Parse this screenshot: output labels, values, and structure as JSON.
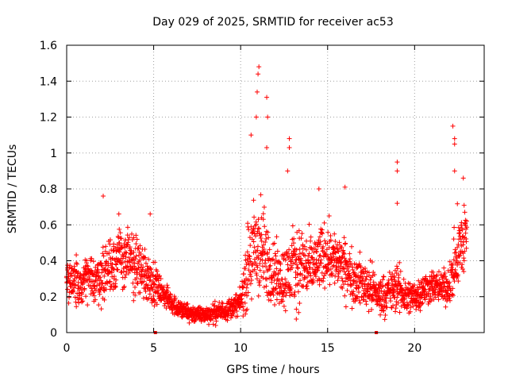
{
  "chart_data": {
    "type": "scatter",
    "title": "Day 029 of 2025, SRMTID for receiver ac53",
    "xlabel": "GPS time / hours",
    "ylabel": "SRMTID / TECUs",
    "xlim": [
      0,
      24
    ],
    "ylim": [
      0,
      1.6
    ],
    "x_ticks": [
      0,
      5,
      10,
      15,
      20
    ],
    "x_tick_labels": [
      "0",
      "5",
      "10",
      "15",
      "20"
    ],
    "y_ticks": [
      0,
      0.2,
      0.4,
      0.6,
      0.8,
      1.0,
      1.2,
      1.4,
      1.6
    ],
    "y_tick_labels": [
      "0",
      "0.2",
      "0.4",
      "0.6",
      "0.8",
      "1",
      "1.2",
      "1.4",
      "1.6"
    ],
    "grid": true,
    "marker": "+",
    "marker_color": "#ff0000",
    "gap_markers_x": [
      5.1,
      17.8
    ],
    "series": [
      {
        "name": "SRMTID",
        "profile_hours": [
          0,
          0.5,
          1,
          1.5,
          2,
          2.5,
          3,
          3.5,
          4,
          4.5,
          5,
          5.5,
          6,
          6.5,
          7,
          7.5,
          8,
          8.5,
          9,
          9.5,
          10,
          10.5,
          11,
          11.5,
          12,
          12.5,
          13,
          13.5,
          14,
          14.5,
          15,
          15.5,
          16,
          16.5,
          17,
          17.5,
          18,
          18.5,
          19,
          19.5,
          20,
          20.5,
          21,
          21.5,
          22,
          22.5,
          23
        ],
        "profile_median": [
          0.28,
          0.27,
          0.3,
          0.29,
          0.32,
          0.38,
          0.42,
          0.4,
          0.38,
          0.33,
          0.28,
          0.22,
          0.17,
          0.13,
          0.11,
          0.1,
          0.1,
          0.11,
          0.12,
          0.14,
          0.17,
          0.4,
          0.48,
          0.4,
          0.32,
          0.3,
          0.36,
          0.38,
          0.35,
          0.4,
          0.45,
          0.4,
          0.35,
          0.3,
          0.28,
          0.25,
          0.2,
          0.22,
          0.25,
          0.2,
          0.2,
          0.24,
          0.26,
          0.25,
          0.26,
          0.45,
          0.55
        ],
        "profile_spread": [
          0.1,
          0.12,
          0.12,
          0.1,
          0.14,
          0.16,
          0.16,
          0.15,
          0.15,
          0.15,
          0.1,
          0.06,
          0.05,
          0.05,
          0.05,
          0.04,
          0.04,
          0.05,
          0.05,
          0.05,
          0.06,
          0.25,
          0.3,
          0.2,
          0.16,
          0.16,
          0.2,
          0.2,
          0.16,
          0.16,
          0.16,
          0.14,
          0.14,
          0.13,
          0.12,
          0.12,
          0.1,
          0.1,
          0.12,
          0.1,
          0.08,
          0.09,
          0.08,
          0.08,
          0.1,
          0.2,
          0.2
        ],
        "peaks": [
          {
            "x": 2.1,
            "y": 0.76
          },
          {
            "x": 3.0,
            "y": 0.66
          },
          {
            "x": 4.8,
            "y": 0.66
          },
          {
            "x": 10.6,
            "y": 1.1
          },
          {
            "x": 10.9,
            "y": 1.2
          },
          {
            "x": 10.95,
            "y": 1.34
          },
          {
            "x": 11.0,
            "y": 1.44
          },
          {
            "x": 11.05,
            "y": 1.48
          },
          {
            "x": 11.5,
            "y": 1.31
          },
          {
            "x": 11.55,
            "y": 1.2
          },
          {
            "x": 11.5,
            "y": 1.03
          },
          {
            "x": 12.8,
            "y": 1.08
          },
          {
            "x": 12.8,
            "y": 1.03
          },
          {
            "x": 12.7,
            "y": 0.9
          },
          {
            "x": 14.5,
            "y": 0.8
          },
          {
            "x": 16.0,
            "y": 0.81
          },
          {
            "x": 19.0,
            "y": 0.95
          },
          {
            "x": 19.0,
            "y": 0.9
          },
          {
            "x": 19.0,
            "y": 0.72
          },
          {
            "x": 22.2,
            "y": 1.15
          },
          {
            "x": 22.3,
            "y": 1.08
          },
          {
            "x": 22.3,
            "y": 1.05
          },
          {
            "x": 22.3,
            "y": 0.9
          },
          {
            "x": 22.8,
            "y": 0.86
          }
        ]
      }
    ]
  }
}
